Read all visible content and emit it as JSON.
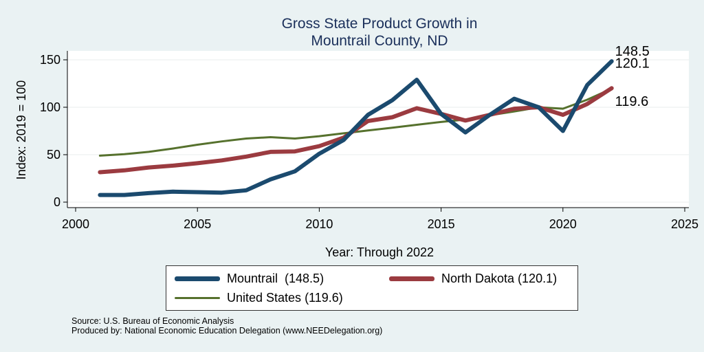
{
  "chart_data": {
    "type": "line",
    "title_lines": [
      "Gross State Product Growth in",
      "Mountrail County, ND"
    ],
    "xlabel": "Year: Through 2022",
    "ylabel": "Index: 2019 = 100",
    "xlim": [
      2000,
      2025
    ],
    "ylim": [
      0,
      155
    ],
    "xticks": [
      2000,
      2005,
      2010,
      2015,
      2020,
      2025
    ],
    "yticks": [
      0,
      50,
      100,
      150
    ],
    "grid": true,
    "legend_position": "bottom",
    "x": [
      2001,
      2002,
      2003,
      2004,
      2005,
      2006,
      2007,
      2008,
      2009,
      2010,
      2011,
      2012,
      2013,
      2014,
      2015,
      2016,
      2017,
      2018,
      2019,
      2020,
      2021,
      2022
    ],
    "series": [
      {
        "name": "United States",
        "legend_label": "United States (119.6)",
        "end_label": "119.6",
        "color": "#56712d",
        "values": [
          49,
          50.5,
          53,
          56.5,
          60.5,
          64,
          67,
          68.5,
          67,
          69.5,
          72.5,
          75.5,
          78.5,
          81.5,
          84.5,
          87,
          91.5,
          95.5,
          100,
          98.5,
          108,
          119.6
        ]
      },
      {
        "name": "North Dakota",
        "legend_label": "North Dakota (120.1)",
        "end_label": "120.1",
        "color": "#9b3b40",
        "values": [
          31.5,
          33.5,
          36.5,
          38.5,
          41,
          44,
          48,
          53,
          53.5,
          59,
          68,
          85.5,
          89.5,
          99,
          93,
          86,
          92,
          98.5,
          100,
          92,
          103.5,
          120.1
        ]
      },
      {
        "name": "Mountrail",
        "legend_label": "Mountrail  (148.5)",
        "end_label": "148.5",
        "color": "#1b4a6e",
        "values": [
          7.5,
          7.5,
          9.5,
          11,
          10.5,
          10,
          12.5,
          24,
          32.5,
          51,
          65.5,
          92,
          107.5,
          129,
          93,
          73.5,
          92,
          109,
          100,
          75,
          123.5,
          148.5
        ]
      }
    ]
  },
  "footer": {
    "source": "Source: U.S. Bureau of Economic Analysis",
    "produced_by": "Produced by: National Economic Education Delegation (www.NEEDelegation.org)"
  }
}
